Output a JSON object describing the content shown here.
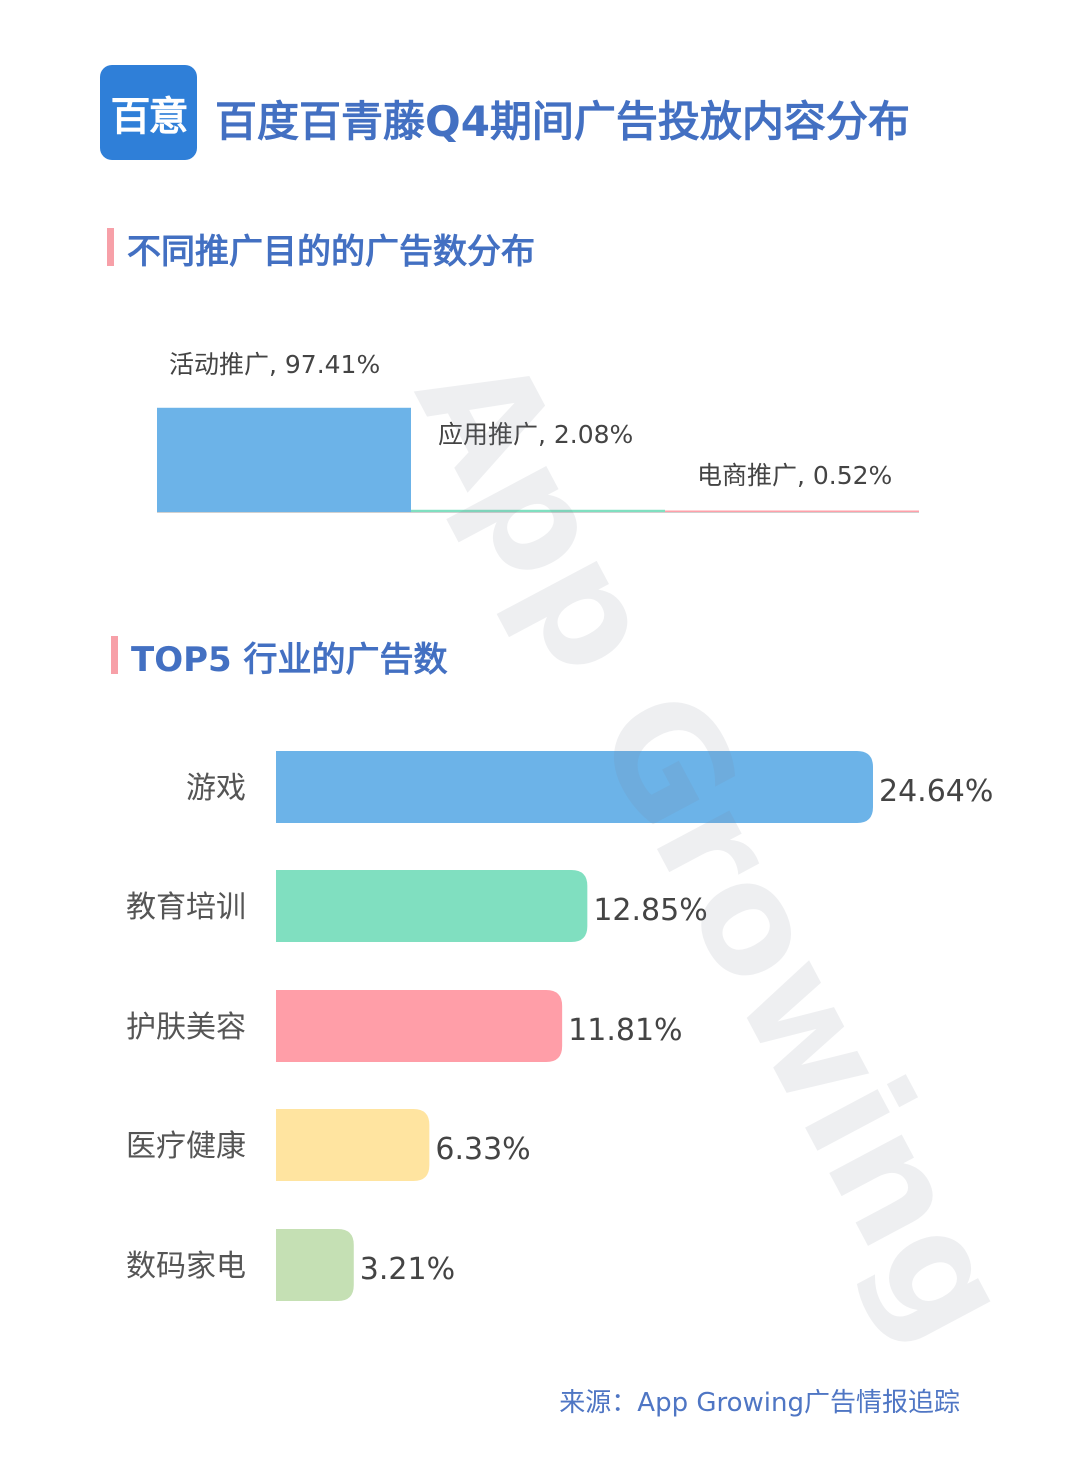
{
  "header": {
    "logo_text": "百意",
    "title": "百度百青藤Q4期间广告投放内容分布"
  },
  "watermark": "App Growing",
  "source": "来源：App Growing广告情报追踪",
  "chart_data": [
    {
      "type": "bar",
      "title": "不同推广目的的广告数分布",
      "unit": "%",
      "categories": [
        "活动推广",
        "应用推广",
        "电商推广"
      ],
      "values": [
        97.41,
        2.08,
        0.52
      ],
      "data_labels": [
        "活动推广, 97.41%",
        "应用推广, 2.08%",
        "电商推广, 0.52%"
      ],
      "colors": [
        "#6cb3e8",
        "#80dfc0",
        "#ffa0aa"
      ],
      "grid": false
    },
    {
      "type": "bar",
      "orientation": "horizontal",
      "title": "TOP5 行业的广告数",
      "unit": "%",
      "categories": [
        "游戏",
        "教育培训",
        "护肤美容",
        "医疗健康",
        "数码家电"
      ],
      "values": [
        24.64,
        12.85,
        11.81,
        6.33,
        3.21
      ],
      "data_labels": [
        "24.64%",
        "12.85%",
        "11.81%",
        "6.33%",
        "3.21%"
      ],
      "colors": [
        "#6cb3e8",
        "#80dfc0",
        "#ff9ea8",
        "#ffe4a0",
        "#c5e0b4"
      ],
      "grid": false
    }
  ]
}
